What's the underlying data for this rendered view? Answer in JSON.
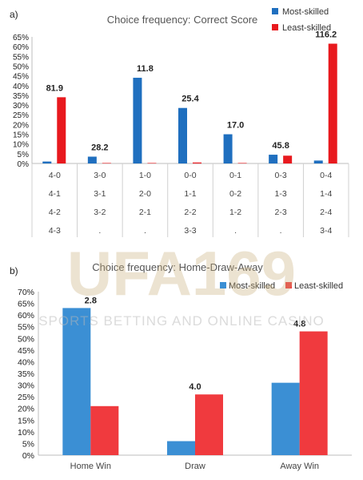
{
  "watermark": {
    "main": "UFA169",
    "sub": "SPORTS BETTING AND ONLINE CASINO"
  },
  "chart_data": [
    {
      "panel": "a)",
      "type": "bar",
      "title": "Choice frequency: Correct Score",
      "xlabel": "",
      "ylabel": "",
      "ylim": [
        0,
        65
      ],
      "yticks": [
        "0%",
        "5%",
        "10%",
        "15%",
        "20%",
        "25%",
        "30%",
        "35%",
        "40%",
        "45%",
        "50%",
        "55%",
        "60%",
        "65%"
      ],
      "categories": [
        [
          "4-0",
          "4-1",
          "4-2",
          "4-3"
        ],
        [
          "3-0",
          "3-1",
          "3-2",
          "."
        ],
        [
          "1-0",
          "2-0",
          "2-1",
          "."
        ],
        [
          "0-0",
          "1-1",
          "2-2",
          "3-3"
        ],
        [
          "0-1",
          "0-2",
          "1-2",
          "."
        ],
        [
          "0-3",
          "1-3",
          "2-3",
          "."
        ],
        [
          "0-4",
          "1-4",
          "2-4",
          "3-4"
        ]
      ],
      "series": [
        {
          "name": "Most-skilled",
          "color": "#1f6fbf",
          "values": [
            1,
            3.5,
            44,
            28.5,
            15,
            4.5,
            1.5
          ]
        },
        {
          "name": "Least-skilled",
          "color": "#e8191e",
          "values": [
            34,
            0,
            0,
            0.5,
            0,
            4,
            61.5
          ]
        }
      ],
      "annotations": [
        "81.9",
        "28.2",
        "11.8",
        "25.4",
        "17.0",
        "45.8",
        "116.2"
      ],
      "legend": "top-right",
      "grid": false
    },
    {
      "panel": "b)",
      "type": "bar",
      "title": "Choice frequency: Home-Draw-Away",
      "xlabel": "",
      "ylabel": "",
      "ylim": [
        0,
        70
      ],
      "yticks": [
        "0%",
        "5%",
        "10%",
        "15%",
        "20%",
        "25%",
        "30%",
        "35%",
        "40%",
        "45%",
        "50%",
        "55%",
        "60%",
        "65%",
        "70%"
      ],
      "categories": [
        "Home Win",
        "Draw",
        "Away Win"
      ],
      "series": [
        {
          "name": "Most-skilled",
          "color": "#3b8fd4",
          "values": [
            63,
            6,
            31
          ]
        },
        {
          "name": "Least-skilled",
          "color": "#f03a3e",
          "values": [
            21,
            26,
            53
          ]
        }
      ],
      "annotations": [
        "2.8",
        "4.0",
        "4.8"
      ],
      "legend": "top-right",
      "grid": false
    }
  ]
}
